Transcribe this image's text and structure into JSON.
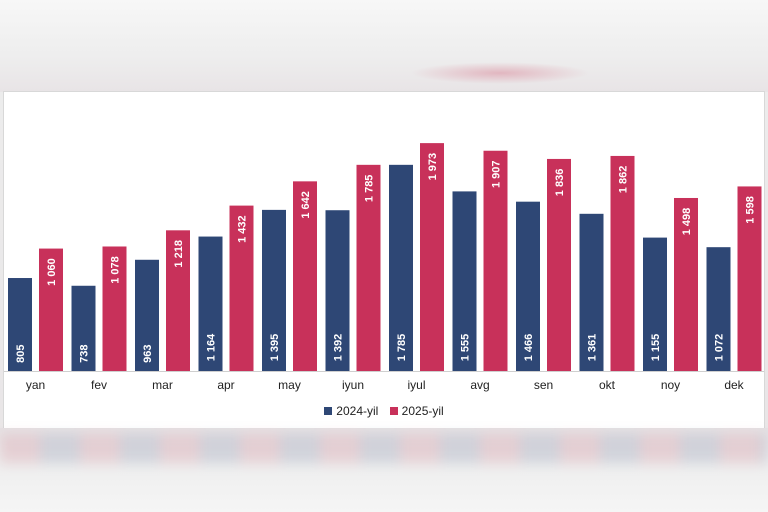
{
  "chart_data": {
    "type": "bar",
    "categories": [
      "yan",
      "fev",
      "mar",
      "apr",
      "may",
      "iyun",
      "iyul",
      "avg",
      "sen",
      "okt",
      "noy",
      "dek"
    ],
    "series": [
      {
        "name": "2024-yil",
        "color": "#2e4775",
        "values": [
          805,
          738,
          963,
          1164,
          1395,
          1392,
          1785,
          1555,
          1466,
          1361,
          1155,
          1072
        ],
        "labels": [
          "805",
          "738",
          "963",
          "1 164",
          "1 395",
          "1 392",
          "1 785",
          "1 555",
          "1 466",
          "1 361",
          "1 155",
          "1 072"
        ]
      },
      {
        "name": "2025-yil",
        "color": "#c8315a",
        "values": [
          1060,
          1078,
          1218,
          1432,
          1642,
          1785,
          1973,
          1907,
          1836,
          1862,
          1498,
          1598
        ],
        "labels": [
          "1 060",
          "1 078",
          "1 218",
          "1 432",
          "1 642",
          "1 785",
          "1 973",
          "1 907",
          "1 836",
          "1 862",
          "1 498",
          "1 598"
        ]
      }
    ],
    "ylim": [
      0,
      2000
    ],
    "grid": false,
    "legend_position": "bottom-center"
  }
}
